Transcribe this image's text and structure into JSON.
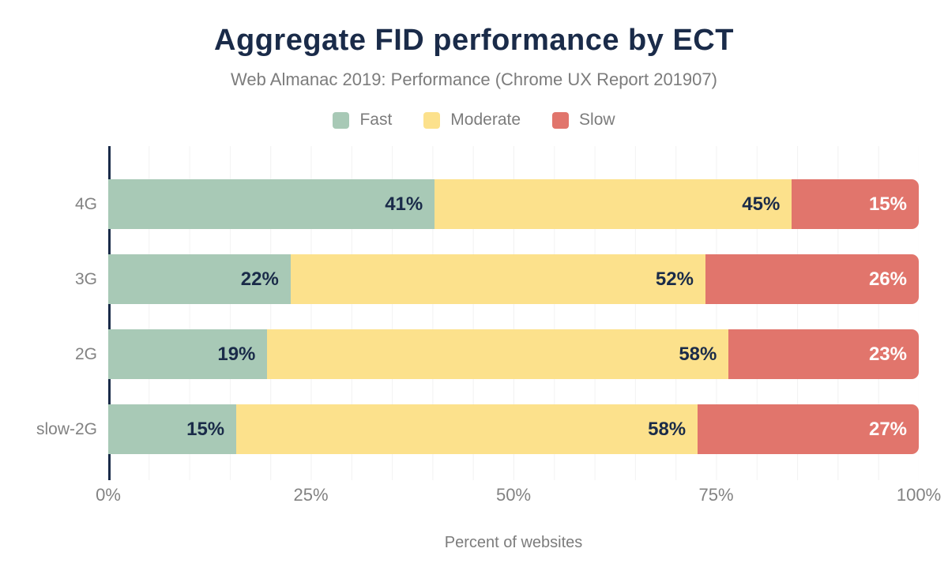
{
  "chart_data": {
    "type": "bar",
    "orientation": "horizontal-stacked",
    "title": "Aggregate FID performance by ECT",
    "subtitle": "Web Almanac 2019: Performance (Chrome UX Report 201907)",
    "xlabel": "Percent of websites",
    "categories": [
      "4G",
      "3G",
      "2G",
      "slow-2G"
    ],
    "series": [
      {
        "name": "Fast",
        "color": "#a8c9b6",
        "label_color": "#1a2b49",
        "values": [
          41,
          22,
          19,
          15
        ]
      },
      {
        "name": "Moderate",
        "color": "#fce18c",
        "label_color": "#1a2b49",
        "values": [
          45,
          52,
          58,
          58
        ]
      },
      {
        "name": "Slow",
        "color": "#e1756c",
        "label_color": "#ffffff",
        "values": [
          15,
          26,
          23,
          27
        ]
      }
    ],
    "value_suffix": "%",
    "xticks": [
      {
        "label": "0%",
        "position": 0
      },
      {
        "label": "25%",
        "position": 25
      },
      {
        "label": "50%",
        "position": 50
      },
      {
        "label": "75%",
        "position": 75
      },
      {
        "label": "100%",
        "position": 100
      }
    ],
    "xlim": [
      0,
      100
    ],
    "grid": "vertical-every-5pct",
    "legend_position": "top"
  },
  "colors": {
    "title_navy": "#1a2b49",
    "axis_line": "#1a2b49",
    "muted_text": "#7c7c7c",
    "tick_text": "#828282",
    "gridline": "#f2f2f2",
    "background": "#ffffff"
  }
}
